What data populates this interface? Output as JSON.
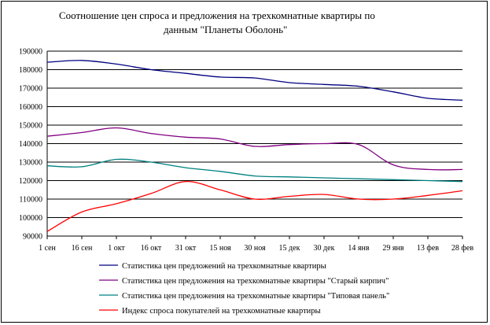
{
  "chart_data": {
    "type": "line",
    "title_line1": "Соотношение цен спроса и предложения на трехкомнатные квартиры      по",
    "title_line2": "данным \"Планеты Оболонь\"",
    "xlabel": "",
    "ylabel": "",
    "ylim": [
      90000,
      190000
    ],
    "yticks": [
      "190000",
      "180000",
      "170000",
      "160000",
      "150000",
      "140000",
      "130000",
      "120000",
      "110000",
      "100000",
      "90000"
    ],
    "categories": [
      "1 сен",
      "16 сен",
      "1 окт",
      "16 окт",
      "31 окт",
      "15 ноя",
      "30 ноя",
      "15 дек",
      "30 дек",
      "14 янв",
      "29 янв",
      "13 фев",
      "28 фев"
    ],
    "grid": true,
    "legend_position": "bottom",
    "series": [
      {
        "name": "Статистика цен предложений на трехкомнатные квартиры",
        "color": "#000080",
        "values": [
          184000,
          185000,
          183000,
          180000,
          178000,
          176000,
          175500,
          173000,
          172000,
          171000,
          168000,
          164500,
          163500
        ]
      },
      {
        "name": "Статистика цен предложения на трехкомнатные квартиры \"Старый кирпич\"",
        "color": "#800080",
        "values": [
          144000,
          146000,
          148500,
          145500,
          143500,
          142500,
          138500,
          139500,
          140000,
          139500,
          128500,
          126000,
          126000
        ]
      },
      {
        "name": "Статистика цен предложения на трехкомнатные квартиры \"Типовая панель\"",
        "color": "#008080",
        "values": [
          128000,
          127500,
          131500,
          130000,
          127000,
          125000,
          122500,
          122000,
          121500,
          121000,
          120500,
          120000,
          119500
        ]
      },
      {
        "name": "Индекс спроса покупателей  на трехкомнатные квартиры",
        "color": "#ff0000",
        "values": [
          92500,
          103000,
          107500,
          113000,
          119500,
          115000,
          110000,
          111500,
          112500,
          110000,
          110000,
          112000,
          114500
        ]
      }
    ]
  }
}
